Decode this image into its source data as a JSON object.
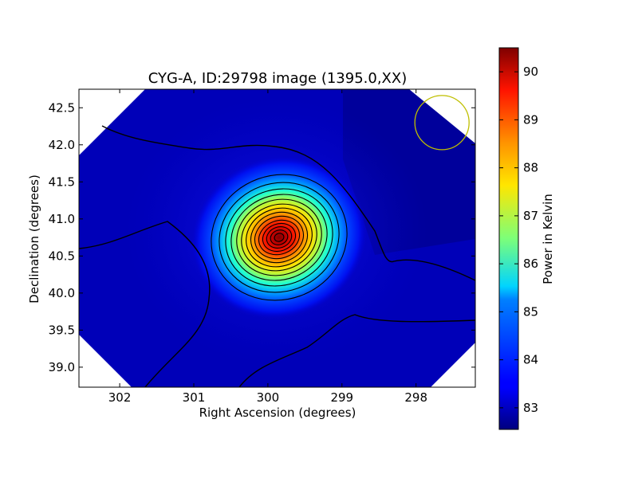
{
  "chart_data": {
    "type": "heatmap",
    "title": "CYG-A, ID:29798 image (1395.0,XX)",
    "xlabel": "Right Ascension (degrees)",
    "ylabel": "Declination (degrees)",
    "colorbar_label": "Power in Kelvin",
    "xlim": [
      302.55,
      297.2
    ],
    "ylim": [
      38.73,
      42.75
    ],
    "x_ticks": [
      302,
      301,
      300,
      299,
      298
    ],
    "y_ticks": [
      39.0,
      39.5,
      40.0,
      40.5,
      41.0,
      41.5,
      42.0,
      42.5
    ],
    "colorbar_range": [
      82.55,
      90.5
    ],
    "colorbar_ticks": [
      83,
      84,
      85,
      86,
      87,
      88,
      89,
      90
    ],
    "colormap": "jet",
    "peak": {
      "ra": 299.83,
      "dec": 40.73,
      "value": 90.5
    },
    "background_value": 82.7,
    "beam_circle": {
      "ra": 297.65,
      "dec": 42.3,
      "color": "#bfbf00"
    },
    "contour_color": "#000000",
    "grid": false
  }
}
